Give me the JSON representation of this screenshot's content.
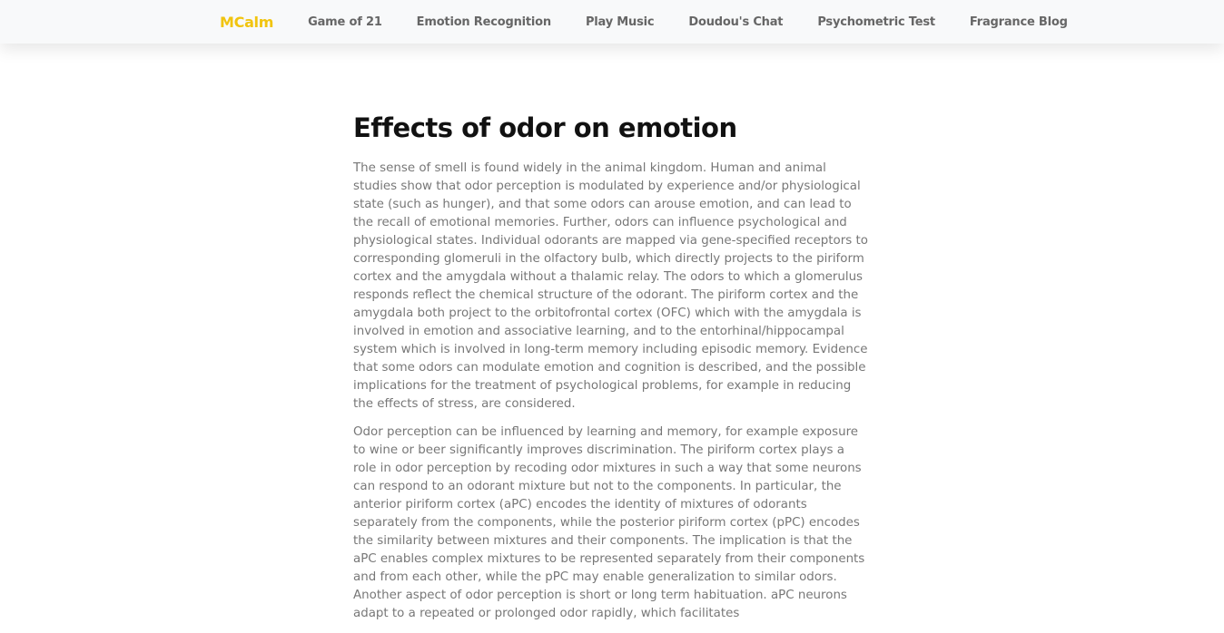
{
  "nav": {
    "brand": "MCalm",
    "links": [
      "Game of 21",
      "Emotion Recognition",
      "Play Music",
      "Doudou's Chat",
      "Psychometric Test",
      "Fragrance Blog"
    ]
  },
  "article": {
    "title": "Effects of odor on emotion",
    "paragraphs": [
      "The sense of smell is found widely in the animal kingdom. Human and animal studies show that odor perception is modulated by experience and/or physiological state (such as hunger), and that some odors can arouse emotion, and can lead to the recall of emotional memories. Further, odors can influence psychological and physiological states. Individual odorants are mapped via gene-specified receptors to corresponding glomeruli in the olfactory bulb, which directly projects to the piriform cortex and the amygdala without a thalamic relay. The odors to which a glomerulus responds reflect the chemical structure of the odorant. The piriform cortex and the amygdala both project to the orbitofrontal cortex (OFC) which with the amygdala is involved in emotion and associative learning, and to the entorhinal/hippocampal system which is involved in long-term memory including episodic memory. Evidence that some odors can modulate emotion and cognition is described, and the possible implications for the treatment of psychological problems, for example in reducing the effects of stress, are considered.",
      "Odor perception can be influenced by learning and memory, for example exposure to wine or beer significantly improves discrimination. The piriform cortex plays a role in odor perception by recoding odor mixtures in such a way that some neurons can respond to an odorant mixture but not to the components. In particular, the anterior piriform cortex (aPC) encodes the identity of mixtures of odorants separately from the components, while the posterior piriform cortex (pPC) encodes the similarity between mixtures and their components. The implication is that the aPC enables complex mixtures to be represented separately from their components and from each other, while the pPC may enable generalization to similar odors. Another aspect of odor perception is short or long term habituation. aPC neurons adapt to a repeated or prolonged odor rapidly, which facilitates"
    ]
  }
}
